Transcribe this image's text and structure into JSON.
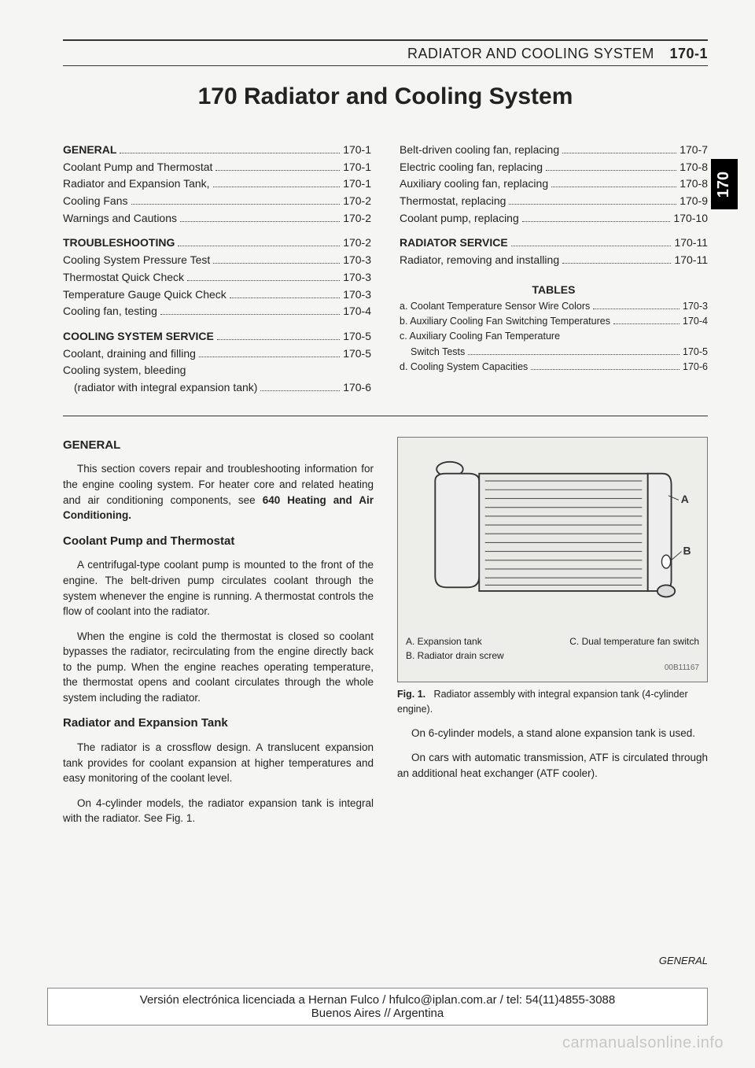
{
  "running_head": {
    "title": "RADIATOR AND COOLING SYSTEM",
    "page_num": "170-1"
  },
  "side_tab": "170",
  "chapter_title": "170 Radiator and Cooling System",
  "toc_left": [
    {
      "label": "GENERAL",
      "page": "170-1",
      "bold": true
    },
    {
      "label": "Coolant Pump and Thermostat",
      "page": "170-1"
    },
    {
      "label": "Radiator and Expansion Tank,",
      "page": "170-1"
    },
    {
      "label": "Cooling Fans",
      "page": "170-2"
    },
    {
      "label": "Warnings and Cautions",
      "page": "170-2"
    },
    {
      "spacer": true
    },
    {
      "label": "TROUBLESHOOTING",
      "page": "170-2",
      "bold": true
    },
    {
      "label": "Cooling System Pressure Test",
      "page": "170-3"
    },
    {
      "label": "Thermostat Quick Check",
      "page": "170-3"
    },
    {
      "label": "Temperature Gauge Quick Check",
      "page": "170-3"
    },
    {
      "label": "Cooling fan, testing",
      "page": "170-4"
    },
    {
      "spacer": true
    },
    {
      "label": "COOLING SYSTEM SERVICE",
      "page": "170-5",
      "bold": true
    },
    {
      "label": "Coolant, draining and filling",
      "page": "170-5"
    },
    {
      "label": "Cooling system, bleeding",
      "nobreak_next": true
    },
    {
      "label": "(radiator with integral expansion tank)",
      "page": "170-6",
      "sub": true
    }
  ],
  "toc_right": [
    {
      "label": "Belt-driven cooling fan, replacing",
      "page": "170-7"
    },
    {
      "label": "Electric cooling fan, replacing",
      "page": "170-8"
    },
    {
      "label": "Auxiliary cooling fan, replacing",
      "page": "170-8"
    },
    {
      "label": "Thermostat, replacing",
      "page": "170-9"
    },
    {
      "label": "Coolant pump, replacing",
      "page": "170-10"
    },
    {
      "spacer": true
    },
    {
      "label": "RADIATOR SERVICE",
      "page": "170-11",
      "bold": true
    },
    {
      "label": "Radiator, removing and installing",
      "page": "170-11"
    }
  ],
  "tables_heading": "TABLES",
  "toc_tables": [
    {
      "label": "a. Coolant Temperature Sensor Wire Colors",
      "page": "170-3"
    },
    {
      "label": "b. Auxiliary Cooling Fan Switching Temperatures",
      "page": "170-4"
    },
    {
      "label": "c. Auxiliary Cooling Fan Temperature",
      "nobreak_next": true
    },
    {
      "label": "Switch Tests",
      "page": "170-5",
      "sub": true
    },
    {
      "label": "d. Cooling System Capacities",
      "page": "170-6"
    }
  ],
  "body": {
    "h_general": "GENERAL",
    "p1a": "This section covers repair and troubleshooting information for the engine cooling system. For heater core and related heating and air conditioning components, see ",
    "p1b": "640 Heating and Air Conditioning.",
    "h_cp": "Coolant Pump and Thermostat",
    "p2": "A centrifugal-type coolant pump is mounted to the front of the engine. The belt-driven pump circulates coolant through the system whenever the engine is running. A thermostat controls the flow of coolant into the radiator.",
    "p3": "When the engine is cold the thermostat is closed so coolant bypasses the radiator, recirculating from the engine directly back to the pump. When the engine reaches operating temperature, the thermostat opens and coolant circulates through the whole system including the radiator.",
    "h_ret": "Radiator and Expansion Tank",
    "p4": "The radiator is a crossflow design. A translucent expansion tank provides for coolant expansion at higher temperatures and easy monitoring of the coolant level.",
    "p5": "On 4-cylinder models, the radiator expansion tank is integral with the radiator. See Fig. 1.",
    "fig_legend_a": "A. Expansion tank",
    "fig_legend_b": "B. Radiator drain screw",
    "fig_legend_c": "C. Dual temperature fan switch",
    "fig_code": "00B11167",
    "fig_cap_b": "Fig. 1.",
    "fig_cap_t": "Radiator assembly with integral expansion tank (4-cylinder engine).",
    "p6": "On 6-cylinder models, a stand alone expansion tank is used.",
    "p7": "On cars with automatic transmission, ATF is circulated through an additional heat exchanger (ATF cooler).",
    "footer_general": "GENERAL"
  },
  "license": {
    "l1": "Versión electrónica licenciada a Hernan Fulco / hfulco@iplan.com.ar / tel: 54(11)4855-3088",
    "l2": "Buenos Aires // Argentina"
  },
  "watermark": "carmanualsonline.info",
  "colors": {
    "rule": "#333333",
    "bg": "#f5f5f3",
    "watermark": "#c7c7c7"
  }
}
